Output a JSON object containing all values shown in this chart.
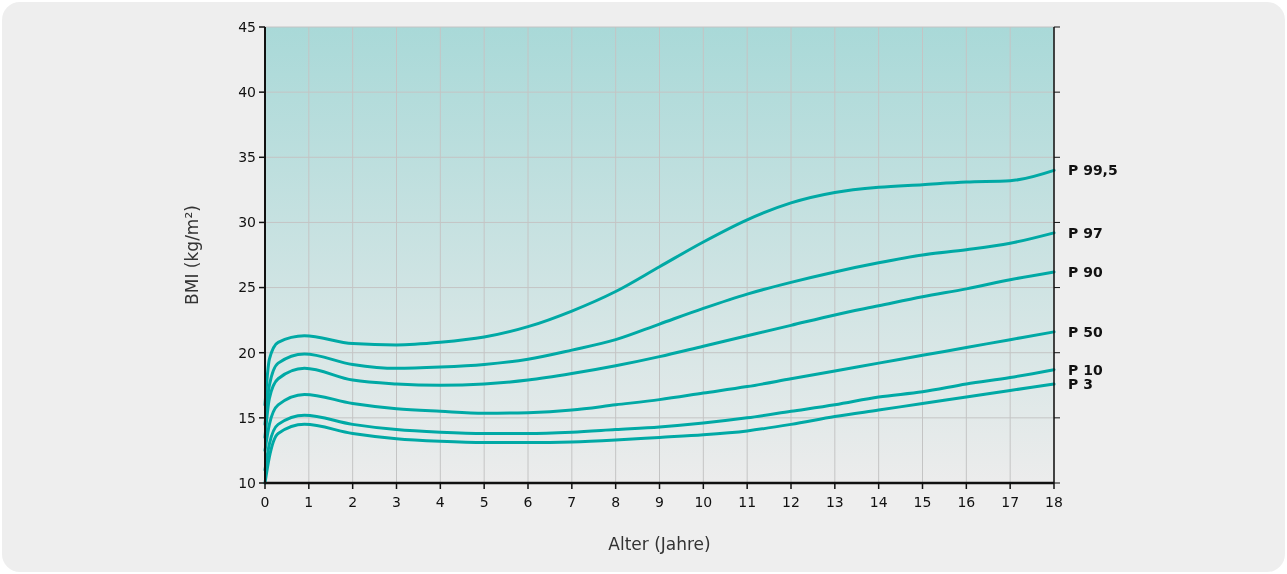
{
  "chart_data": {
    "type": "line",
    "xlabel": "Alter (Jahre)",
    "ylabel": "BMI (kg/m²)",
    "xlim": [
      0,
      18
    ],
    "ylim": [
      10,
      45
    ],
    "xticks": [
      0,
      1,
      2,
      3,
      4,
      5,
      6,
      7,
      8,
      9,
      10,
      11,
      12,
      13,
      14,
      15,
      16,
      17,
      18
    ],
    "yticks": [
      10,
      15,
      20,
      25,
      30,
      35,
      40,
      45
    ],
    "grid": true,
    "legend": false,
    "marker": "none",
    "line_style": "solid",
    "x": [
      0,
      0.1,
      0.3,
      0.9,
      2,
      3,
      4,
      5,
      6,
      7,
      8,
      9,
      10,
      11,
      12,
      13,
      14,
      15,
      16,
      17,
      18
    ],
    "series": [
      {
        "name": "P 99,5",
        "color": "#00a9a5",
        "values": [
          16,
          19.5,
          20.8,
          21.3,
          20.7,
          20.6,
          20.8,
          21.2,
          22.0,
          23.2,
          24.7,
          26.6,
          28.5,
          30.2,
          31.5,
          32.3,
          32.7,
          32.9,
          33.1,
          33.2,
          34.0
        ]
      },
      {
        "name": "P 97",
        "color": "#00a9a5",
        "values": [
          14.5,
          17.5,
          19.2,
          19.9,
          19.1,
          18.8,
          18.9,
          19.1,
          19.5,
          20.2,
          21.0,
          22.2,
          23.4,
          24.5,
          25.4,
          26.2,
          26.9,
          27.5,
          27.9,
          28.4,
          29.2
        ]
      },
      {
        "name": "P 90",
        "color": "#00a9a5",
        "values": [
          13.5,
          16.5,
          18.0,
          18.8,
          17.9,
          17.6,
          17.5,
          17.6,
          17.9,
          18.4,
          19.0,
          19.7,
          20.5,
          21.3,
          22.1,
          22.9,
          23.6,
          24.3,
          24.9,
          25.6,
          26.2
        ]
      },
      {
        "name": "P 50",
        "color": "#00a9a5",
        "values": [
          12.5,
          14.5,
          16.0,
          16.8,
          16.1,
          15.7,
          15.5,
          15.35,
          15.4,
          15.6,
          16.0,
          16.4,
          16.9,
          17.4,
          18.0,
          18.6,
          19.2,
          19.8,
          20.4,
          21.0,
          21.6
        ]
      },
      {
        "name": "P 10",
        "color": "#00a9a5",
        "values": [
          11,
          13.0,
          14.5,
          15.2,
          14.5,
          14.1,
          13.9,
          13.8,
          13.8,
          13.9,
          14.1,
          14.3,
          14.6,
          15.0,
          15.5,
          16.0,
          16.6,
          17.0,
          17.6,
          18.1,
          18.7
        ]
      },
      {
        "name": "P 3",
        "color": "#00a9a5",
        "values": [
          10,
          12.0,
          13.8,
          14.5,
          13.8,
          13.4,
          13.2,
          13.1,
          13.1,
          13.15,
          13.3,
          13.5,
          13.7,
          14.0,
          14.5,
          15.1,
          15.6,
          16.1,
          16.6,
          17.1,
          17.6
        ]
      }
    ]
  }
}
